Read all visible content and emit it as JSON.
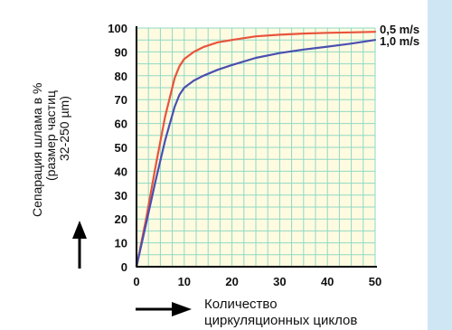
{
  "colors": {
    "background": "#cfe6f5",
    "plot_area": "#fffbe0",
    "grid": "#8fd9c4",
    "series_05": "#e8543c",
    "series_10": "#4a4fb0",
    "text": "#111111"
  },
  "chart_data": {
    "type": "line",
    "ylabel_lines": [
      "Сепарация шлама в %",
      "(размер частиц",
      "32-250 µm)"
    ],
    "xlabel_lines": [
      "Количество",
      "циркуляционных циклов"
    ],
    "xlim": [
      0,
      50
    ],
    "ylim": [
      0,
      100
    ],
    "x_ticks": [
      0,
      10,
      20,
      30,
      40,
      50
    ],
    "y_ticks": [
      0,
      10,
      20,
      30,
      40,
      50,
      60,
      70,
      80,
      90,
      100
    ],
    "grid": true,
    "series": [
      {
        "name": "0,5 m/s",
        "x": [
          0,
          2,
          4,
          6,
          8,
          9,
          10,
          12,
          14,
          17,
          20,
          25,
          30,
          35,
          40,
          45,
          50
        ],
        "y": [
          0,
          20,
          42,
          63,
          79,
          84,
          87,
          90,
          92,
          94,
          95,
          96.5,
          97.2,
          97.7,
          98,
          98.2,
          98.4
        ]
      },
      {
        "name": "1,0 m/s",
        "x": [
          0,
          2,
          4,
          6,
          8,
          9,
          10,
          12,
          14,
          17,
          20,
          25,
          30,
          35,
          40,
          45,
          50
        ],
        "y": [
          0,
          18,
          36,
          53,
          67,
          72,
          75,
          78,
          80,
          82.5,
          84.5,
          87.5,
          89.5,
          91,
          92.2,
          93.5,
          95
        ]
      }
    ]
  }
}
